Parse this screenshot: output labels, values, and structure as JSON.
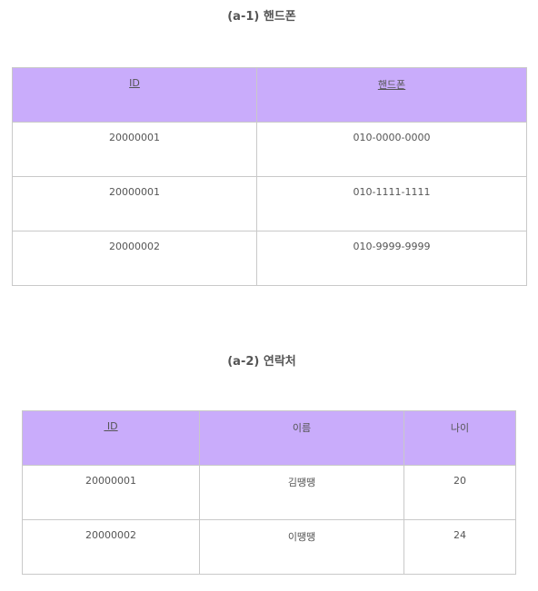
{
  "table_a1": {
    "caption": "(a-1) 핸드폰",
    "headers": [
      "ID",
      "핸드폰 "
    ],
    "rows": [
      [
        "20000001",
        "010-0000-0000"
      ],
      [
        "20000001",
        "010-1111-1111"
      ],
      [
        "20000002",
        "010-9999-9999"
      ]
    ]
  },
  "table_a2": {
    "caption": "(a-2) 연락처",
    "headers": [
      " ID",
      "이름",
      "나이"
    ],
    "rows": [
      [
        "20000001",
        "김땡땡",
        "20"
      ],
      [
        "20000002",
        "이땡땡",
        "24"
      ]
    ]
  },
  "colors": {
    "header_bg": "#c9acfb",
    "border": "#c9c9c9",
    "text": "#555555"
  }
}
